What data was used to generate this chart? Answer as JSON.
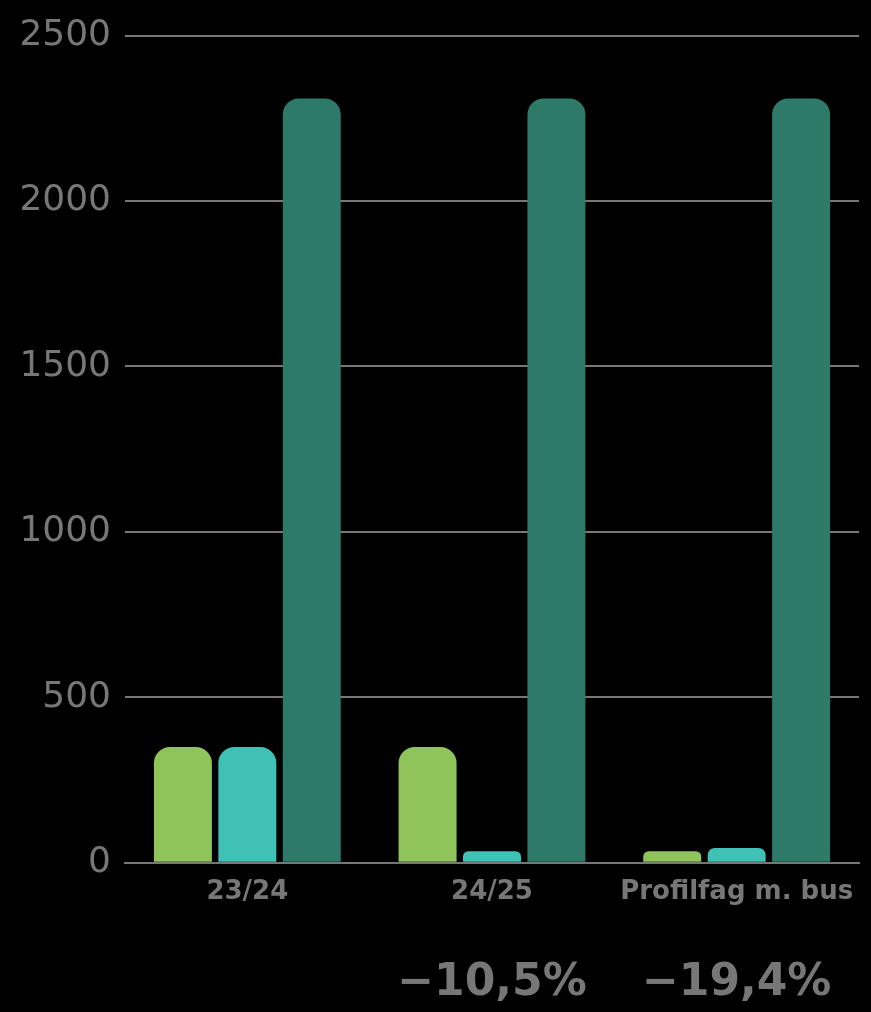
{
  "chart_data": {
    "type": "bar",
    "categories": [
      "23/24",
      "24/25",
      "Profilfag m. bus"
    ],
    "series": [
      {
        "color": "#8fc45a",
        "values": [
          350,
          350,
          35
        ]
      },
      {
        "color": "#3fc1b6",
        "values": [
          350,
          35,
          45
        ]
      },
      {
        "color": "#2e7a69",
        "values": [
          2310,
          2310,
          2310
        ]
      }
    ],
    "ylim": [
      0,
      2500
    ],
    "yticks": [
      0,
      500,
      1000,
      1500,
      2000,
      2500
    ],
    "grid": "y",
    "legend": false,
    "annotations": [
      "−10,5%",
      "−19,4%"
    ]
  }
}
